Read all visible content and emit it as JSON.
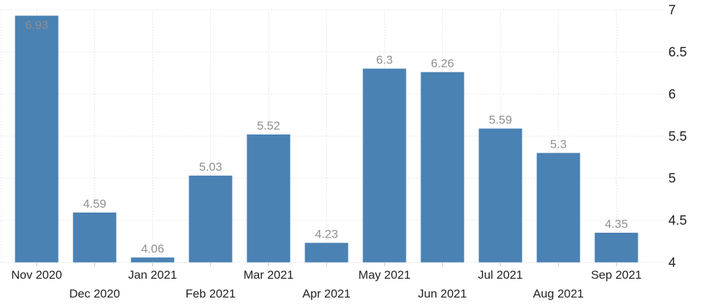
{
  "chart_data": {
    "type": "bar",
    "title": "",
    "xlabel": "",
    "ylabel": "",
    "categories": [
      "Nov 2020",
      "Dec 2020",
      "Jan 2021",
      "Feb 2021",
      "Mar 2021",
      "Apr 2021",
      "May 2021",
      "Jun 2021",
      "Jul 2021",
      "Aug 2021",
      "Sep 2021"
    ],
    "values": [
      6.93,
      4.59,
      4.06,
      5.03,
      5.52,
      4.23,
      6.3,
      6.26,
      5.59,
      5.3,
      4.35
    ],
    "value_labels": [
      "6.93",
      "4.59",
      "4.06",
      "5.03",
      "5.52",
      "4.23",
      "6.3",
      "6.26",
      "5.59",
      "5.3",
      "4.35"
    ],
    "ylim": [
      4,
      7
    ],
    "yticks": [
      4,
      4.5,
      5,
      5.5,
      6,
      6.5,
      7
    ],
    "ytick_labels": [
      "4",
      "4.5",
      "5",
      "5.5",
      "6",
      "6.5",
      "7"
    ],
    "y_axis_side": "right",
    "grid": "dashed",
    "legend_position": "none",
    "x_label_layout": "staggered-two-rows",
    "colors": {
      "bar": "#4a82b4",
      "value_label": "#8f8f8f",
      "axis_label": "#222222",
      "gridline": "#e7e7e7",
      "baseline": "#d4d4d4",
      "tick": "#c5c5c5",
      "background": "#ffffff"
    }
  }
}
